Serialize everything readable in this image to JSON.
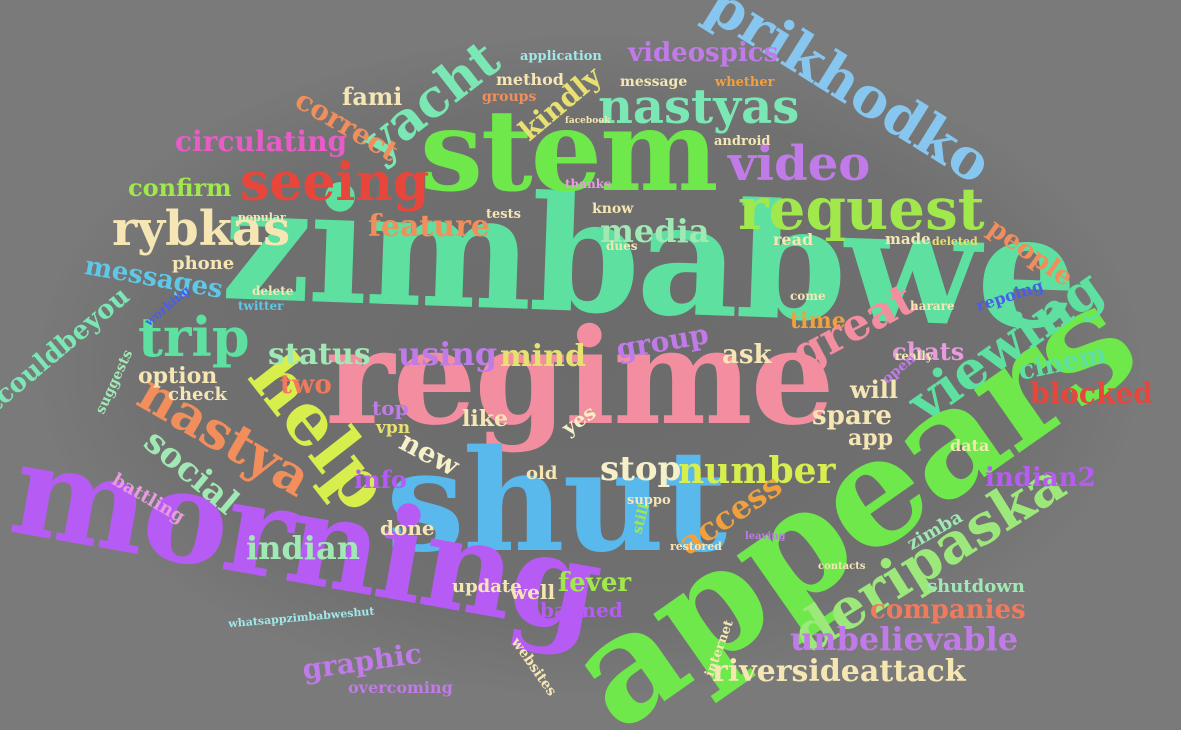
{
  "cloud": {
    "words": [
      {
        "text": "zimbabwe",
        "color": "#5ee1a0"
      },
      {
        "text": "regime",
        "color": "#f28ea0"
      },
      {
        "text": "shut",
        "color": "#59b8ec"
      },
      {
        "text": "stem",
        "color": "#6ee84a"
      },
      {
        "text": "appears",
        "color": "#6ee84a"
      },
      {
        "text": "morning",
        "color": "#b65cf4"
      },
      {
        "text": "help",
        "color": "#d8ee4c"
      },
      {
        "text": "prikhodko",
        "color": "#86c6ef"
      },
      {
        "text": "deripaska",
        "color": "#9ce87a"
      },
      {
        "text": "request",
        "color": "#a0e84c"
      },
      {
        "text": "nastyas",
        "color": "#7be7b4"
      },
      {
        "text": "video",
        "color": "#c07be8"
      },
      {
        "text": "seeing",
        "color": "#e8463a"
      },
      {
        "text": "yacht",
        "color": "#7be7b4"
      },
      {
        "text": "viewing",
        "color": "#5ee1a0"
      },
      {
        "text": "nastya",
        "color": "#f28e5c"
      },
      {
        "text": "rybkas",
        "color": "#f5e6b4"
      },
      {
        "text": "trip",
        "color": "#5ee1a0"
      },
      {
        "text": "great",
        "color": "#f28ea0"
      },
      {
        "text": "number",
        "color": "#d8ee4c"
      },
      {
        "text": "social",
        "color": "#a0e8b4"
      },
      {
        "text": "access",
        "color": "#f2a03c"
      },
      {
        "text": "stop",
        "color": "#f5f0c8"
      },
      {
        "text": "media",
        "color": "#a0e8b4"
      },
      {
        "text": "feature",
        "color": "#f28e5c"
      },
      {
        "text": "status",
        "color": "#a0e8b4"
      },
      {
        "text": "using",
        "color": "#c07be8"
      },
      {
        "text": "mind",
        "color": "#e8e070"
      },
      {
        "text": "indian",
        "color": "#a0e8b4"
      },
      {
        "text": "messages",
        "color": "#5ec8e8"
      },
      {
        "text": "graphic",
        "color": "#c07be8"
      },
      {
        "text": "unbelievable",
        "color": "#c07be8"
      },
      {
        "text": "riversideattack",
        "color": "#f5e6b4"
      },
      {
        "text": "companies",
        "color": "#f27a5c"
      },
      {
        "text": "videospics",
        "color": "#c07be8"
      },
      {
        "text": "circulating",
        "color": "#e85cc8"
      },
      {
        "text": "confirm",
        "color": "#a0e84c"
      },
      {
        "text": "kindly",
        "color": "#e8e070"
      },
      {
        "text": "correct",
        "color": "#f28e5c"
      },
      {
        "text": "itcouldbeyou",
        "color": "#7be7b4"
      },
      {
        "text": "blocked",
        "color": "#e8463a"
      },
      {
        "text": "cinem",
        "color": "#5ee1a0"
      },
      {
        "text": "people",
        "color": "#f28e5c"
      },
      {
        "text": "indian2",
        "color": "#b65cf4"
      },
      {
        "text": "fever",
        "color": "#a0e84c"
      },
      {
        "text": "group",
        "color": "#c07be8"
      },
      {
        "text": "two",
        "color": "#f27a5c"
      },
      {
        "text": "new",
        "color": "#f5f0c8"
      },
      {
        "text": "info",
        "color": "#b65cf4"
      },
      {
        "text": "spare",
        "color": "#f5e6b4"
      },
      {
        "text": "app",
        "color": "#f5e6b4"
      },
      {
        "text": "ask",
        "color": "#f5e6b4"
      },
      {
        "text": "fami",
        "color": "#f5e6b4"
      },
      {
        "text": "will",
        "color": "#f5e6b4"
      },
      {
        "text": "chats",
        "color": "#e89ce0"
      },
      {
        "text": "time",
        "color": "#f2a03c"
      },
      {
        "text": "option",
        "color": "#f5e6b4"
      },
      {
        "text": "check",
        "color": "#f5e6b4"
      },
      {
        "text": "phone",
        "color": "#f5e6b4"
      },
      {
        "text": "top",
        "color": "#c07be8"
      },
      {
        "text": "like",
        "color": "#f5e6b4"
      },
      {
        "text": "vpn",
        "color": "#e8e070"
      },
      {
        "text": "yes",
        "color": "#f5f0c8"
      },
      {
        "text": "done",
        "color": "#f5e6b4"
      },
      {
        "text": "update",
        "color": "#f5e6b4"
      },
      {
        "text": "well",
        "color": "#f5e6b4"
      },
      {
        "text": "banned",
        "color": "#b65cf4"
      },
      {
        "text": "old",
        "color": "#f5e6b4"
      },
      {
        "text": "shutdown",
        "color": "#a0e8b4"
      },
      {
        "text": "zimba",
        "color": "#a0e8b4"
      },
      {
        "text": "data",
        "color": "#f5e6b4"
      },
      {
        "text": "overcoming",
        "color": "#c07be8"
      },
      {
        "text": "websites",
        "color": "#f5e6b4"
      },
      {
        "text": "internet",
        "color": "#f5e6b4"
      },
      {
        "text": "battling",
        "color": "#e89ce0"
      },
      {
        "text": "suggests",
        "color": "#a0e8b4"
      },
      {
        "text": "method",
        "color": "#f5e6b4"
      },
      {
        "text": "application",
        "color": "#a0e8e8"
      },
      {
        "text": "message",
        "color": "#f5e6b4"
      },
      {
        "text": "whether",
        "color": "#f2a03c"
      },
      {
        "text": "groups",
        "color": "#f28e5c"
      },
      {
        "text": "android",
        "color": "#f5e6b4"
      },
      {
        "text": "know",
        "color": "#f5e6b4"
      },
      {
        "text": "read",
        "color": "#f5e6b4"
      },
      {
        "text": "made",
        "color": "#f5e6b4"
      },
      {
        "text": "deleted",
        "color": "#e8e070"
      },
      {
        "text": "repoing",
        "color": "#4a5ce8"
      },
      {
        "text": "harare",
        "color": "#f5e6b4"
      },
      {
        "text": "really",
        "color": "#f5e6b4"
      },
      {
        "text": "open",
        "color": "#c07be8"
      },
      {
        "text": "delete",
        "color": "#f5e6b4"
      },
      {
        "text": "working",
        "color": "#4a5ce8"
      },
      {
        "text": "tests",
        "color": "#f5e6b4"
      },
      {
        "text": "thanks",
        "color": "#e89ce0"
      },
      {
        "text": "whatsappzimbabweshut",
        "color": "#a0e8e8"
      },
      {
        "text": "twitter",
        "color": "#5ec8e8"
      },
      {
        "text": "dues",
        "color": "#f5e6b4"
      },
      {
        "text": "suppo",
        "color": "#f5e6b4"
      },
      {
        "text": "still",
        "color": "#a0e84c"
      },
      {
        "text": "facebook",
        "color": "#f5e6b4"
      },
      {
        "text": "popular",
        "color": "#f5e6b4"
      },
      {
        "text": "come",
        "color": "#f5e6b4"
      },
      {
        "text": "contacts",
        "color": "#f5e6b4"
      },
      {
        "text": "restored",
        "color": "#f5e6b4"
      },
      {
        "text": "leaving",
        "color": "#c07be8"
      }
    ]
  }
}
